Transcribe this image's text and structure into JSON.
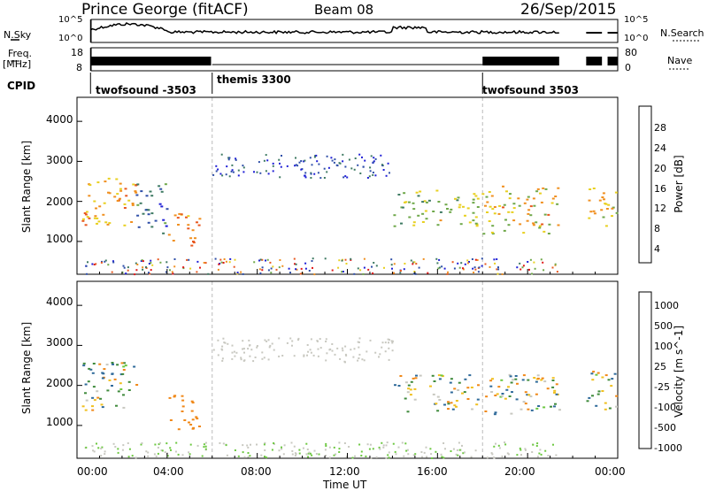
{
  "header": {
    "station": "Prince George (fitACF)",
    "beam": "Beam 08",
    "date": "26/Sep/2015"
  },
  "left_labels": {
    "nsky": "N.Sky",
    "freq": "Freq.",
    "freq_unit": "[MHz]",
    "cpid": "CPID"
  },
  "right_labels": {
    "nsearch": "N.Search",
    "nave": "Nave"
  },
  "noise_axis": {
    "left_top": "10^5",
    "left_bottom": "10^0",
    "right_top": "10^5",
    "right_bottom": "10^0"
  },
  "freq_axis": {
    "left_top": "18",
    "left_bottom": "8",
    "right_top": "80",
    "right_bottom": "0"
  },
  "cpid_segments": [
    {
      "label": "twofsound -3503",
      "start_hour": 0.6,
      "end_hour": 6.0
    },
    {
      "label": "themis 3300",
      "start_hour": 6.0,
      "end_hour": 18.0
    },
    {
      "label": "twofsound 3503",
      "start_hour": 18.0,
      "end_hour": 21.4
    }
  ],
  "power_panel": {
    "ylabel": "Slant Range [km]",
    "yticks": [
      "1000",
      "2000",
      "3000",
      "4000"
    ],
    "colorbar_label": "Power [dB]",
    "colorbar_ticks": [
      "4",
      "8",
      "12",
      "16",
      "20",
      "24",
      "28"
    ],
    "colors": [
      "#1f1fd6",
      "#2f4fa8",
      "#3e7a62",
      "#6fa84a",
      "#e8d020",
      "#f09020",
      "#e85820",
      "#e01818"
    ]
  },
  "velocity_panel": {
    "ylabel": "Slant Range [km]",
    "yticks": [
      "1000",
      "2000",
      "3000",
      "4000"
    ],
    "colorbar_label": "Velocity [m s^-1]",
    "colorbar_ticks": [
      "1000",
      "500",
      "100",
      "25",
      "-25",
      "-100",
      "-500",
      "-1000"
    ],
    "colors": [
      "#2038c8",
      "#2f6a9a",
      "#3f8a3c",
      "#6cc840",
      "#c8c8c0",
      "#f0c020",
      "#f08818",
      "#e03818",
      "#d81010"
    ]
  },
  "x_axis": {
    "ticks": [
      "00:00",
      "04:00",
      "08:00",
      "12:00",
      "16:00",
      "20:00",
      "00:00"
    ],
    "label": "Time UT"
  },
  "chart_data": [
    {
      "type": "heatmap",
      "title": "Prince George (fitACF) Beam 08 26/Sep/2015",
      "xlabel": "Time UT",
      "ylabel": "Slant Range [km]",
      "colorbar": "Power [dB]",
      "xlim": [
        0,
        24
      ],
      "ylim": [
        180,
        4600
      ],
      "crange": [
        0,
        30
      ],
      "regions": [
        {
          "t0": 0.2,
          "t1": 2.6,
          "r0": 1400,
          "r1": 2700,
          "value": 20
        },
        {
          "t0": 2.6,
          "t1": 4.0,
          "r0": 1200,
          "r1": 2500,
          "value": 8
        },
        {
          "t0": 4.0,
          "t1": 5.4,
          "r0": 900,
          "r1": 1800,
          "value": 22
        },
        {
          "t0": 14.0,
          "t1": 18.0,
          "r0": 1400,
          "r1": 2300,
          "value": 14
        },
        {
          "t0": 18.0,
          "t1": 21.4,
          "r0": 1200,
          "r1": 2400,
          "value": 18
        },
        {
          "t0": 22.6,
          "t1": 24.0,
          "r0": 1400,
          "r1": 2400,
          "value": 18
        }
      ]
    },
    {
      "type": "heatmap",
      "title": "",
      "xlabel": "Time UT",
      "ylabel": "Slant Range [km]",
      "colorbar": "Velocity [m s^-1]",
      "xlim": [
        0,
        24
      ],
      "ylim": [
        180,
        4600
      ],
      "crange": [
        -1000,
        1000
      ],
      "regions": [
        {
          "t0": 0.2,
          "t1": 2.6,
          "r0": 1400,
          "r1": 2600,
          "value": 0
        },
        {
          "t0": 0.2,
          "t1": 1.6,
          "r0": 2300,
          "r1": 2600,
          "value": 150
        },
        {
          "t0": 4.0,
          "t1": 5.4,
          "r0": 900,
          "r1": 1800,
          "value": -300
        },
        {
          "t0": 14.0,
          "t1": 21.4,
          "r0": 1300,
          "r1": 2300,
          "value": 0
        },
        {
          "t0": 22.6,
          "t1": 24.0,
          "r0": 1400,
          "r1": 2400,
          "value": 0
        }
      ]
    }
  ]
}
